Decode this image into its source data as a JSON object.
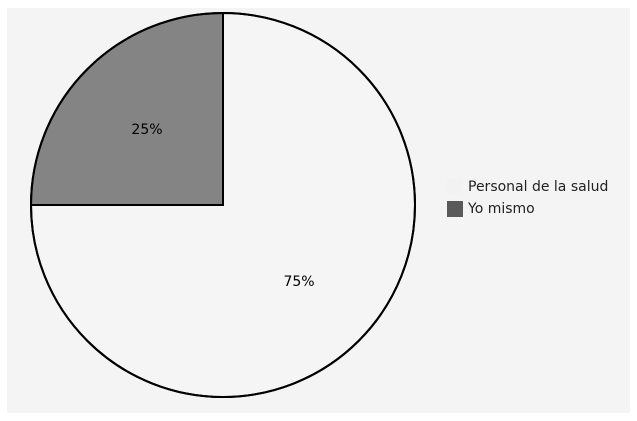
{
  "chart_data": {
    "type": "pie",
    "title": "",
    "start_angle_deg": 0,
    "direction": "clockwise",
    "slices": [
      {
        "label": "Personal de la salud",
        "value": 75,
        "value_label": "75%",
        "color": "#f5f5f5"
      },
      {
        "label": "Yo mismo",
        "value": 25,
        "value_label": "25%",
        "color": "#848484"
      }
    ],
    "legend": {
      "position": "right",
      "entries": [
        {
          "label": "Personal de la salud",
          "color": "#f2f2f2"
        },
        {
          "label": "Yo mismo",
          "color": "#5a5a5a"
        }
      ]
    },
    "border_color": "#000000"
  }
}
